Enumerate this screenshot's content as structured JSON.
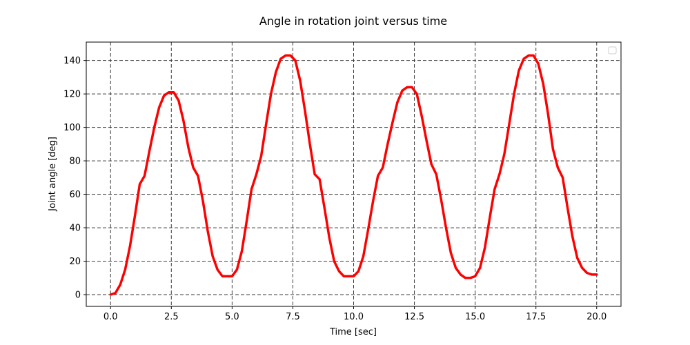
{
  "chart_data": {
    "type": "line",
    "title": "Angle in rotation joint versus time",
    "xlabel": "Time [sec]",
    "ylabel": "Joint angle [deg]",
    "xlim": [
      -1.0,
      21.0
    ],
    "ylim": [
      -7,
      151
    ],
    "xticks": [
      0.0,
      2.5,
      5.0,
      7.5,
      10.0,
      12.5,
      15.0,
      17.5,
      20.0
    ],
    "xtick_labels": [
      "0.0",
      "2.5",
      "5.0",
      "7.5",
      "10.0",
      "12.5",
      "15.0",
      "17.5",
      "20.0"
    ],
    "yticks": [
      0,
      20,
      40,
      60,
      80,
      100,
      120,
      140
    ],
    "ytick_labels": [
      "0",
      "20",
      "40",
      "60",
      "80",
      "100",
      "120",
      "140"
    ],
    "grid": true,
    "legend": "top-right (empty)",
    "series": [
      {
        "color": "#ff0000",
        "x": [
          0.0,
          0.2,
          0.4,
          0.6,
          0.8,
          1.0,
          1.2,
          1.4,
          1.6,
          1.8,
          2.0,
          2.2,
          2.4,
          2.6,
          2.8,
          3.0,
          3.2,
          3.4,
          3.6,
          3.8,
          4.0,
          4.2,
          4.4,
          4.6,
          4.8,
          5.0,
          5.2,
          5.4,
          5.6,
          5.8,
          6.0,
          6.2,
          6.4,
          6.6,
          6.8,
          7.0,
          7.2,
          7.4,
          7.6,
          7.8,
          8.0,
          8.2,
          8.4,
          8.6,
          8.8,
          9.0,
          9.2,
          9.4,
          9.6,
          9.8,
          10.0,
          10.2,
          10.4,
          10.6,
          10.8,
          11.0,
          11.2,
          11.4,
          11.6,
          11.8,
          12.0,
          12.2,
          12.4,
          12.6,
          12.8,
          13.0,
          13.2,
          13.4,
          13.6,
          13.8,
          14.0,
          14.2,
          14.4,
          14.6,
          14.8,
          15.0,
          15.2,
          15.4,
          15.6,
          15.8,
          16.0,
          16.2,
          16.4,
          16.6,
          16.8,
          17.0,
          17.2,
          17.4,
          17.6,
          17.8,
          18.0,
          18.2,
          18.4,
          18.6,
          18.8,
          19.0,
          19.2,
          19.4,
          19.6,
          19.8,
          20.0
        ],
        "y": [
          0,
          1,
          6,
          15,
          29,
          47,
          66,
          71,
          86,
          100,
          112,
          119,
          121,
          121,
          116,
          104,
          88,
          76,
          71,
          56,
          38,
          23,
          15,
          11,
          11,
          11,
          15,
          26,
          44,
          63,
          72,
          83,
          102,
          120,
          133,
          141,
          143,
          143,
          140,
          128,
          110,
          90,
          72,
          69,
          52,
          34,
          20,
          14,
          11,
          11,
          11,
          14,
          23,
          39,
          56,
          71,
          76,
          90,
          103,
          115,
          122,
          124,
          124,
          120,
          107,
          92,
          78,
          72,
          57,
          40,
          25,
          16,
          12,
          10,
          10,
          11,
          16,
          28,
          46,
          63,
          72,
          84,
          102,
          120,
          134,
          141,
          143,
          143,
          138,
          126,
          108,
          87,
          76,
          70,
          52,
          35,
          22,
          16,
          13,
          12,
          12
        ]
      }
    ]
  }
}
